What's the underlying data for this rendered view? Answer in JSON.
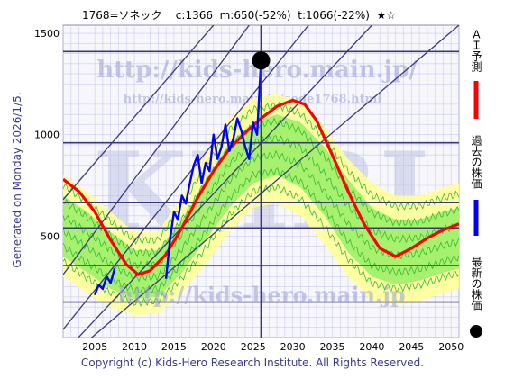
{
  "header": {
    "title": "1768=ソネック    c:1366  m:650(-52%)  t:1066(-22%)  ★☆"
  },
  "side_note": "Generated on Monday 2026/1/5.",
  "footer": "Copyright (c) Kids-Hero Research Institute. All Rights Reserved.",
  "watermarks": {
    "url_main": "http://kids-hero.main.jp/",
    "url_code": "http://kids-hero.main.jp/code1768.html",
    "big": "KHRI",
    "url_bottom": "http://kids-hero.main.jp"
  },
  "legend": [
    {
      "label": "ＡＩ予測",
      "color": "#ff0000",
      "marker": "line"
    },
    {
      "label": "過去の株価",
      "color": "#0000ff",
      "marker": "line"
    },
    {
      "label": "最新の株価",
      "color": "#000000",
      "marker": "dot"
    }
  ],
  "colors": {
    "band_outer": "#ffff99",
    "band_inner": "#99ee66",
    "band_line": "#33bb33",
    "grid": "#ccccee",
    "level_line": "#3a3a7a"
  },
  "chart_data": {
    "type": "line",
    "xlim": [
      2001,
      2051
    ],
    "ylim": [
      0,
      1540
    ],
    "x_ticks": [
      2005,
      2010,
      2015,
      2020,
      2025,
      2030,
      2035,
      2040,
      2045,
      2050
    ],
    "y_ticks": [
      500,
      1000,
      1500
    ],
    "horizontal_levels": [
      1410,
      960,
      665,
      540,
      355,
      175
    ],
    "trend_lines": [
      {
        "x": [
          2001,
          2032
        ],
        "y": [
          40,
          1540
        ]
      },
      {
        "x": [
          2001,
          2040
        ],
        "y": [
          -80,
          1540
        ]
      },
      {
        "x": [
          2001,
          2024.5
        ],
        "y": [
          310,
          1540
        ]
      },
      {
        "x": [
          2001,
          2020
        ],
        "y": [
          680,
          1540
        ]
      },
      {
        "x": [
          2004,
          2051
        ],
        "y": [
          -20,
          1540
        ]
      }
    ],
    "current": {
      "x": 2026.0,
      "y": 1366
    },
    "current_vline_x": 2026.0,
    "series": [
      {
        "name": "ＡＩ予測",
        "x": [
          2001,
          2003,
          2005,
          2007,
          2009,
          2010.5,
          2012,
          2014,
          2016,
          2018,
          2020,
          2022,
          2024,
          2026,
          2028,
          2030,
          2031.5,
          2033,
          2035,
          2037,
          2039,
          2041,
          2043,
          2045,
          2047,
          2049,
          2051
        ],
        "y": [
          780,
          720,
          620,
          480,
          360,
          310,
          330,
          410,
          540,
          690,
          820,
          930,
          1010,
          1080,
          1140,
          1170,
          1150,
          1070,
          900,
          720,
          560,
          440,
          400,
          440,
          490,
          530,
          560
        ]
      },
      {
        "name": "過去の株価",
        "x": [
          2005,
          2005.5,
          2006,
          2006.5,
          2007,
          2007.5,
          2014,
          2014.5,
          2015,
          2015.5,
          2016,
          2016.5,
          2017,
          2017.5,
          2018,
          2018.5,
          2019,
          2019.5,
          2020,
          2020.5,
          2021,
          2021.5,
          2022,
          2022.5,
          2023,
          2023.5,
          2024,
          2024.5,
          2025,
          2025.5,
          2026
        ],
        "y": [
          210,
          260,
          240,
          300,
          270,
          340,
          290,
          480,
          620,
          580,
          700,
          660,
          760,
          850,
          900,
          760,
          860,
          820,
          1000,
          880,
          940,
          1050,
          920,
          980,
          1080,
          1020,
          940,
          880,
          1060,
          1000,
          1366
        ]
      }
    ],
    "bands": {
      "x": [
        2001,
        2004,
        2007,
        2010,
        2013,
        2016,
        2019,
        2022,
        2025,
        2028,
        2031,
        2034,
        2037,
        2040,
        2043,
        2046,
        2049,
        2051
      ],
      "outer_upper": [
        800,
        720,
        620,
        520,
        520,
        700,
        900,
        1080,
        1180,
        1200,
        1160,
        1040,
        880,
        760,
        700,
        700,
        740,
        760
      ],
      "inner_upper": [
        700,
        620,
        520,
        430,
        430,
        580,
        780,
        960,
        1060,
        1100,
        1060,
        940,
        780,
        640,
        580,
        580,
        620,
        640
      ],
      "inner_lower": [
        400,
        320,
        240,
        190,
        200,
        320,
        480,
        640,
        760,
        800,
        740,
        600,
        420,
        300,
        260,
        280,
        320,
        340
      ],
      "outer_lower": [
        300,
        220,
        150,
        110,
        120,
        220,
        360,
        520,
        640,
        660,
        600,
        460,
        300,
        180,
        160,
        180,
        220,
        240
      ]
    }
  }
}
